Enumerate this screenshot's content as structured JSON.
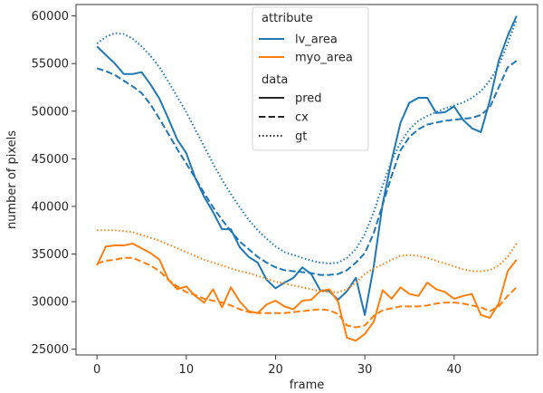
{
  "chart_data": {
    "type": "line",
    "xlabel": "frame",
    "ylabel": "number of pixels",
    "xlim": [
      -2.35,
      49.35
    ],
    "ylim": [
      24400,
      61200
    ],
    "xticks": [
      0,
      10,
      20,
      30,
      40
    ],
    "yticks": [
      25000,
      30000,
      35000,
      40000,
      45000,
      50000,
      55000,
      60000
    ],
    "grid": false,
    "legend": {
      "placement": "top-center",
      "hue_title": "attribute",
      "style_title": "data",
      "hue_entries": [
        {
          "label": "lv_area",
          "color": "#1f77b4"
        },
        {
          "label": "myo_area",
          "color": "#ff7f0e"
        }
      ],
      "style_entries": [
        {
          "label": "pred",
          "dash": "solid"
        },
        {
          "label": "cx",
          "dash": "dashed"
        },
        {
          "label": "gt",
          "dash": "dotted"
        }
      ]
    },
    "x": [
      0,
      1,
      2,
      3,
      4,
      5,
      6,
      7,
      8,
      9,
      10,
      11,
      12,
      13,
      14,
      15,
      16,
      17,
      18,
      19,
      20,
      21,
      22,
      23,
      24,
      25,
      26,
      27,
      28,
      29,
      30,
      31,
      32,
      33,
      34,
      35,
      36,
      37,
      38,
      39,
      40,
      41,
      42,
      43,
      44,
      45,
      46,
      47
    ],
    "series": [
      {
        "attribute": "lv_area",
        "data": "pred",
        "color": "#1f77b4",
        "dash": "solid",
        "values": [
          56800,
          55900,
          55000,
          53900,
          53900,
          54100,
          52800,
          51300,
          49200,
          47000,
          45600,
          43000,
          41000,
          39400,
          37600,
          37600,
          35700,
          34700,
          34100,
          32300,
          31400,
          32000,
          32500,
          33600,
          32900,
          31200,
          31100,
          30200,
          31100,
          32500,
          28600,
          33700,
          40300,
          44800,
          48800,
          50900,
          51400,
          51400,
          49800,
          49900,
          50500,
          49100,
          48200,
          47800,
          51100,
          55300,
          57900,
          60000
        ]
      },
      {
        "attribute": "lv_area",
        "data": "cx",
        "color": "#1f77b4",
        "dash": "dashed",
        "values": [
          54500,
          54200,
          53800,
          53200,
          52600,
          51900,
          50700,
          49200,
          47600,
          46000,
          44500,
          43000,
          41400,
          39900,
          38600,
          37400,
          36300,
          35500,
          34700,
          34100,
          33600,
          33300,
          33200,
          33100,
          33000,
          32800,
          32800,
          32900,
          33300,
          34100,
          35100,
          37200,
          40200,
          43200,
          45900,
          47300,
          48100,
          48600,
          48800,
          49000,
          49100,
          49200,
          49300,
          49600,
          50400,
          52500,
          54600,
          55300
        ]
      },
      {
        "attribute": "lv_area",
        "data": "gt",
        "color": "#1f77b4",
        "dash": "dotted",
        "values": [
          57100,
          57800,
          58200,
          58100,
          57600,
          56800,
          55800,
          54600,
          53100,
          51500,
          49900,
          48100,
          46300,
          44500,
          42800,
          41300,
          39900,
          38600,
          37500,
          36600,
          35800,
          35200,
          34900,
          34600,
          34300,
          34100,
          34000,
          34100,
          34600,
          35500,
          37100,
          39400,
          42200,
          44800,
          46700,
          48100,
          49000,
          49500,
          49900,
          50300,
          50600,
          50900,
          51400,
          52100,
          53200,
          54800,
          57100,
          59600
        ]
      },
      {
        "attribute": "myo_area",
        "data": "pred",
        "color": "#ff7f0e",
        "dash": "solid",
        "values": [
          33800,
          35800,
          35900,
          35900,
          36100,
          35600,
          35100,
          34400,
          32300,
          31300,
          31600,
          30600,
          29900,
          31300,
          29400,
          31500,
          30000,
          29000,
          28800,
          29700,
          30100,
          29500,
          29200,
          30100,
          30200,
          31100,
          31300,
          30000,
          26200,
          25900,
          26600,
          27900,
          31200,
          30300,
          31500,
          30800,
          30600,
          32000,
          31300,
          31000,
          30300,
          30600,
          30800,
          28600,
          28300,
          29800,
          33200,
          34400
        ]
      },
      {
        "attribute": "myo_area",
        "data": "cx",
        "color": "#ff7f0e",
        "dash": "dashed",
        "values": [
          34000,
          34300,
          34400,
          34600,
          34600,
          34200,
          33800,
          33200,
          32300,
          31600,
          31000,
          30700,
          30300,
          30100,
          29900,
          29600,
          29200,
          28900,
          28800,
          28800,
          28800,
          28800,
          28900,
          29000,
          29100,
          29200,
          29100,
          28700,
          27500,
          27300,
          27500,
          28500,
          29100,
          29300,
          29500,
          29500,
          29500,
          29600,
          29800,
          29900,
          29900,
          29800,
          29600,
          29400,
          29000,
          29500,
          30600,
          31500
        ]
      },
      {
        "attribute": "myo_area",
        "data": "gt",
        "color": "#ff7f0e",
        "dash": "dotted",
        "values": [
          37500,
          37500,
          37500,
          37400,
          37300,
          37000,
          36700,
          36400,
          36000,
          35600,
          35200,
          34800,
          34400,
          34100,
          33800,
          33500,
          33200,
          33000,
          32700,
          32400,
          32100,
          31900,
          31700,
          31500,
          31300,
          31100,
          31000,
          31000,
          31300,
          32000,
          32900,
          33500,
          33900,
          34400,
          34800,
          34900,
          34800,
          34600,
          34300,
          34000,
          33700,
          33400,
          33200,
          33200,
          33300,
          33800,
          34700,
          36100
        ]
      }
    ]
  }
}
